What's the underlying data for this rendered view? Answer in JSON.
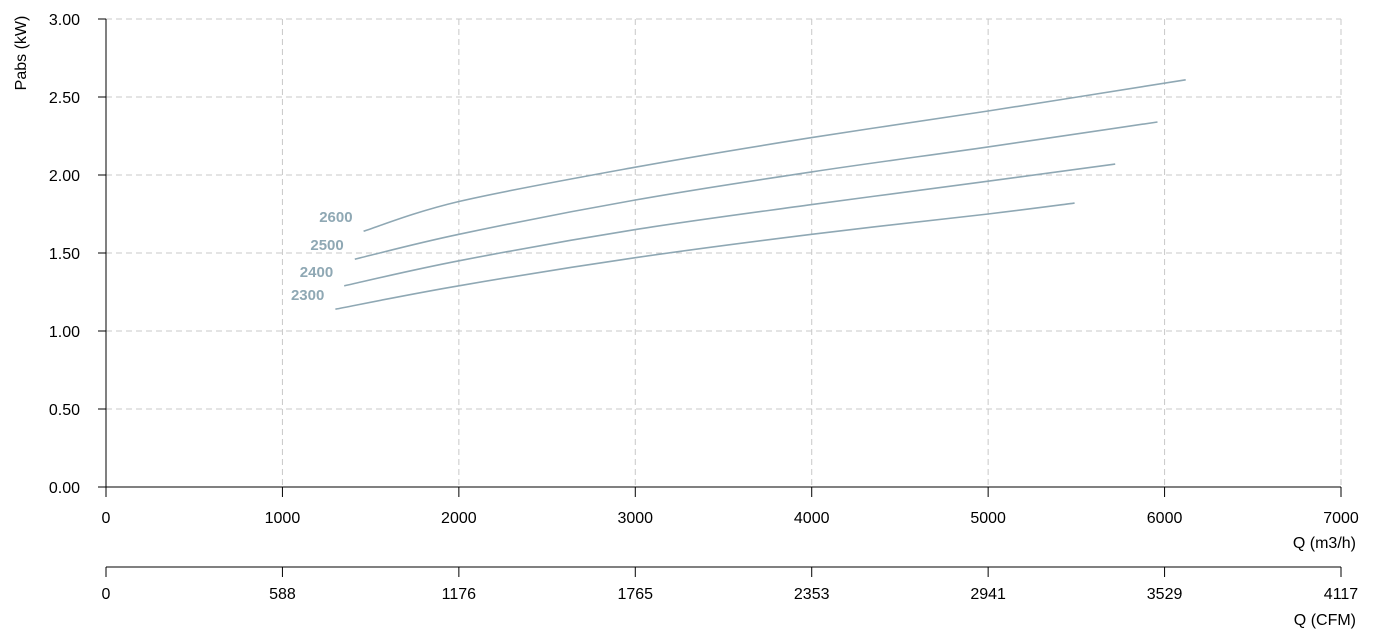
{
  "chart_data": {
    "type": "line",
    "ylabel": "Pabs (kW)",
    "xlabel": "Q (m3/h)",
    "x2label": "Q (CFM)",
    "xlim": [
      0,
      7000
    ],
    "ylim": [
      0,
      3.0
    ],
    "x_ticks": [
      "0",
      "1000",
      "2000",
      "3000",
      "4000",
      "5000",
      "6000",
      "7000"
    ],
    "x2_ticks": [
      "0",
      "588",
      "1176",
      "1765",
      "2353",
      "2941",
      "3529",
      "4117"
    ],
    "y_ticks": [
      "0.00",
      "0.50",
      "1.00",
      "1.50",
      "2.00",
      "2.50",
      "3.00"
    ],
    "grid": true,
    "series_color": "#8fa8b4",
    "series": [
      {
        "name": "2600",
        "x": [
          1460,
          2000,
          3000,
          4000,
          5000,
          6120
        ],
        "y": [
          1.64,
          1.83,
          2.05,
          2.24,
          2.41,
          2.61
        ]
      },
      {
        "name": "2500",
        "x": [
          1410,
          2000,
          3000,
          4000,
          5000,
          5960
        ],
        "y": [
          1.46,
          1.62,
          1.84,
          2.02,
          2.18,
          2.34
        ]
      },
      {
        "name": "2400",
        "x": [
          1350,
          2000,
          3000,
          4000,
          5000,
          5720
        ],
        "y": [
          1.29,
          1.45,
          1.65,
          1.81,
          1.96,
          2.07
        ]
      },
      {
        "name": "2300",
        "x": [
          1300,
          2000,
          3000,
          4000,
          5000,
          5490
        ],
        "y": [
          1.14,
          1.29,
          1.47,
          1.62,
          1.75,
          1.82
        ]
      }
    ]
  }
}
